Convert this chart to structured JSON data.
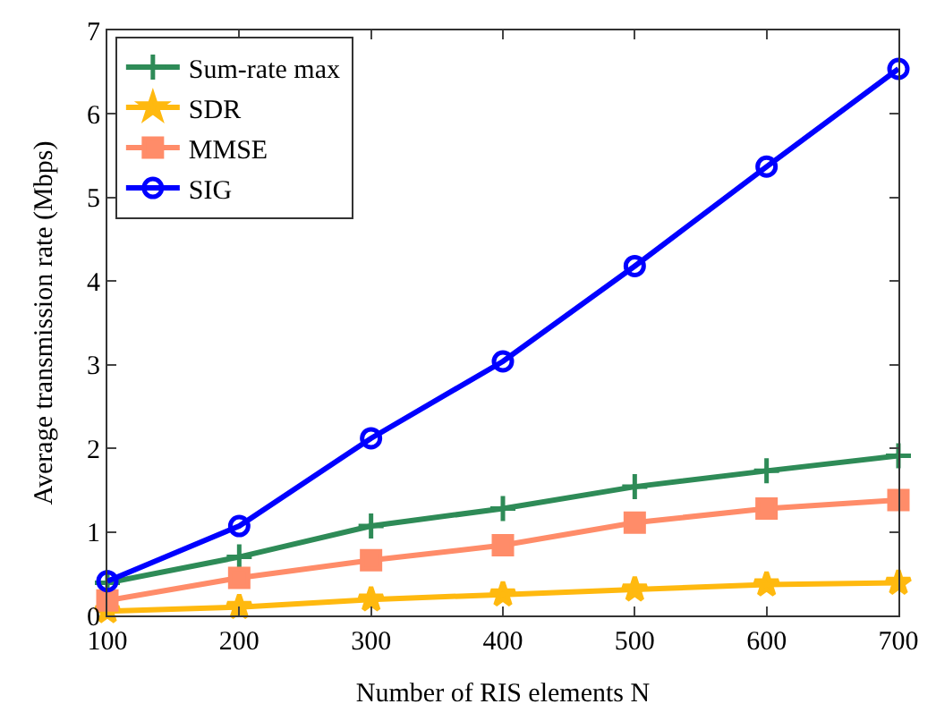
{
  "chart_data": {
    "type": "line",
    "xlabel": "Number of RIS elements N",
    "ylabel": "Average transmission rate (Mbps)",
    "x": [
      100,
      200,
      300,
      400,
      500,
      600,
      700
    ],
    "series": [
      {
        "name": "Sum-rate max",
        "color": "#2e8b57",
        "marker": "cross",
        "values": [
          0.39,
          0.7,
          1.07,
          1.28,
          1.54,
          1.73,
          1.91
        ]
      },
      {
        "name": "SDR",
        "color": "#ffb90f",
        "marker": "star",
        "values": [
          0.05,
          0.1,
          0.19,
          0.25,
          0.31,
          0.37,
          0.39
        ]
      },
      {
        "name": "MMSE",
        "color": "#ff8c69",
        "marker": "square",
        "values": [
          0.18,
          0.45,
          0.66,
          0.84,
          1.11,
          1.28,
          1.38
        ]
      },
      {
        "name": "SIG",
        "color": "#0000ff",
        "marker": "circle",
        "values": [
          0.41,
          1.07,
          2.12,
          3.04,
          4.18,
          5.37,
          6.54
        ]
      }
    ],
    "xlim": [
      100,
      700
    ],
    "xticks": [
      100,
      200,
      300,
      400,
      500,
      600,
      700
    ],
    "ylim": [
      0,
      7
    ],
    "yticks": [
      0,
      1,
      2,
      3,
      4,
      5,
      6,
      7
    ],
    "grid": false,
    "legend": "top left",
    "line_style": "solid"
  }
}
